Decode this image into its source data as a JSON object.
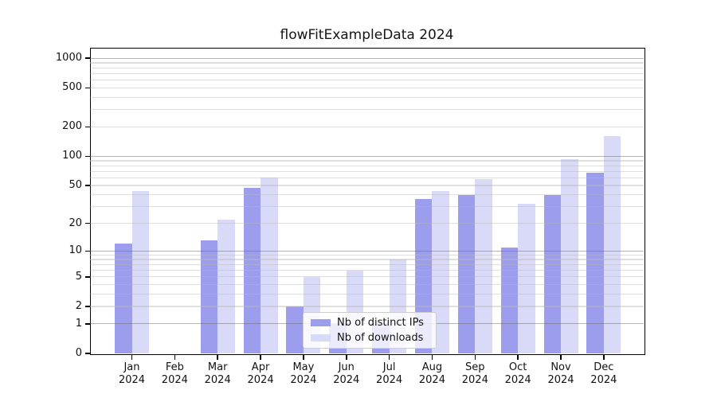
{
  "title": "flowFitExampleData 2024",
  "chart_data": {
    "type": "bar",
    "title": "flowFitExampleData 2024",
    "categories": [
      "Jan 2024",
      "Feb 2024",
      "Mar 2024",
      "Apr 2024",
      "May 2024",
      "Jun 2024",
      "Jul 2024",
      "Aug 2024",
      "Sep 2024",
      "Oct 2024",
      "Nov 2024",
      "Dec 2024"
    ],
    "series": [
      {
        "name": "Nb of distinct IPs",
        "color": "#9d9dee",
        "values": [
          12,
          0,
          13,
          47,
          2,
          1,
          1,
          36,
          40,
          11,
          40,
          68
        ]
      },
      {
        "name": "Nb of downloads",
        "color": "#d9d9f8",
        "values": [
          44,
          0,
          22,
          60,
          5,
          6,
          8,
          44,
          58,
          32,
          93,
          160
        ]
      }
    ],
    "xlabel": "",
    "ylabel": "",
    "yscale": "log1p",
    "ylim": [
      0,
      1280
    ],
    "yticks": [
      0,
      1,
      2,
      5,
      10,
      20,
      50,
      100,
      200,
      500,
      1000
    ],
    "major_gridlines": [
      1,
      10,
      100,
      1000
    ],
    "minor_gridlines": [
      2,
      3,
      4,
      5,
      6,
      7,
      8,
      9,
      20,
      30,
      40,
      50,
      60,
      70,
      80,
      90,
      200,
      300,
      400,
      500,
      600,
      700,
      800,
      900
    ],
    "grid": true,
    "legend_position": "lower center"
  },
  "colors": {
    "background": "#ffffff",
    "axis": "#000000",
    "major_grid": "#b0b0b0",
    "minor_grid": "#e3e3e3",
    "text": "#151515",
    "legend_border": "#cccccc"
  }
}
